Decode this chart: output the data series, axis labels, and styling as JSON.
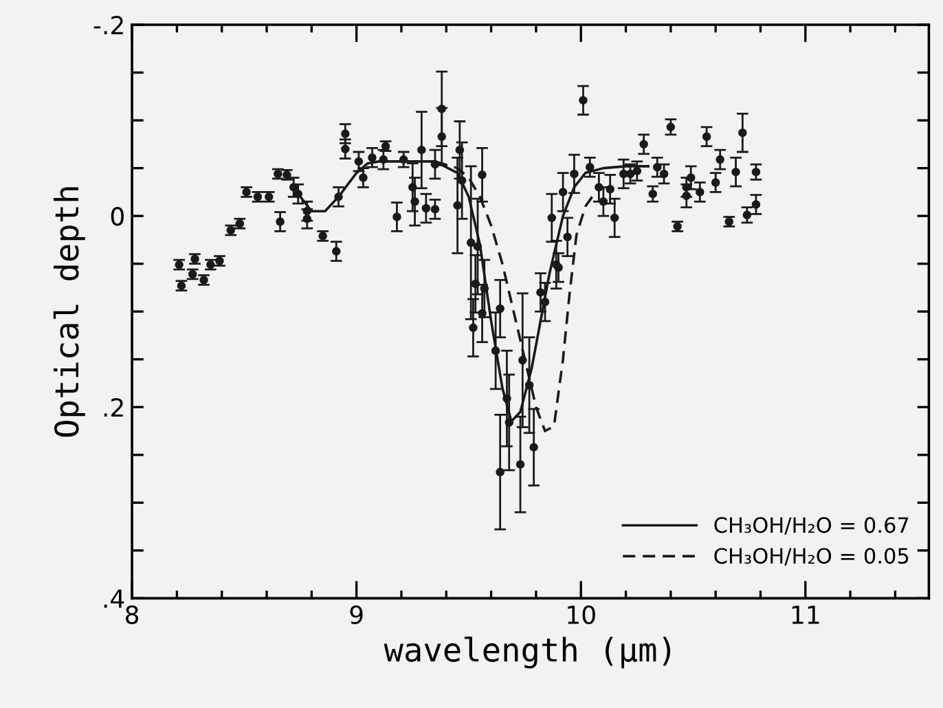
{
  "chart_data": {
    "type": "scatter",
    "xlabel": "wavelength (µm)",
    "ylabel": "Optical depth",
    "xlim": [
      8,
      11.55
    ],
    "xticks": [
      8,
      {
        "value": 8.2,
        "label": null
      },
      {
        "value": 8.4,
        "label": null
      },
      {
        "value": 8.6,
        "label": null
      },
      {
        "value": 8.8,
        "label": null
      },
      9,
      {
        "value": 9.2,
        "label": null
      },
      {
        "value": 9.4,
        "label": null
      },
      {
        "value": 9.6,
        "label": null
      },
      {
        "value": 9.8,
        "label": null
      },
      10,
      {
        "value": 10.2,
        "label": null
      },
      {
        "value": 10.4,
        "label": null
      },
      {
        "value": 10.6,
        "label": null
      },
      {
        "value": 10.8,
        "label": null
      },
      11,
      {
        "value": 11.2,
        "label": null
      },
      {
        "value": 11.4,
        "label": null
      }
    ],
    "ylim": [
      0.4,
      -0.2
    ],
    "yticks": [
      {
        "value": -0.2,
        "label": "-.2"
      },
      {
        "value": -0.15,
        "label": null
      },
      {
        "value": -0.1,
        "label": null
      },
      {
        "value": -0.05,
        "label": null
      },
      0,
      {
        "value": 0.05,
        "label": null
      },
      {
        "value": 0.1,
        "label": null
      },
      {
        "value": 0.15,
        "label": null
      },
      {
        "value": 0.2,
        "label": ".2"
      },
      {
        "value": 0.25,
        "label": null
      },
      {
        "value": 0.3,
        "label": null
      },
      {
        "value": 0.35,
        "label": null
      },
      {
        "value": 0.4,
        "label": ".4"
      }
    ],
    "grid": false,
    "legend": "bottom right",
    "series": [
      {
        "color": "#1a1a1a",
        "marker": "circle",
        "x": [
          8.21,
          8.22,
          8.27,
          8.28,
          8.32,
          8.35,
          8.39,
          8.44,
          8.48,
          8.51,
          8.56,
          8.61,
          8.65,
          8.66,
          8.69,
          8.72,
          8.74,
          8.78,
          8.78,
          8.85,
          8.91,
          8.92,
          8.95,
          8.95,
          9.01,
          9.03,
          9.07,
          9.12,
          9.13,
          9.18,
          9.21,
          9.25,
          9.26,
          9.29,
          9.31,
          9.35,
          9.35,
          9.38,
          9.38,
          9.45,
          9.46,
          9.47,
          9.51,
          9.52,
          9.53,
          9.54,
          9.56,
          9.56,
          9.57,
          9.62,
          9.64,
          9.64,
          9.67,
          9.68,
          9.73,
          9.74,
          9.77,
          9.79,
          9.82,
          9.84,
          9.87,
          9.89,
          9.9,
          9.92,
          9.94,
          9.97,
          10.01,
          10.04,
          10.08,
          10.1,
          10.13,
          10.15,
          10.19,
          10.22,
          10.25,
          10.28,
          10.32,
          10.34,
          10.37,
          10.4,
          10.43,
          10.47,
          10.47,
          10.49,
          10.53,
          10.56,
          10.6,
          10.62,
          10.66,
          10.69,
          10.72,
          10.74,
          10.78,
          10.78
        ],
        "values": [
          0.051,
          0.073,
          0.061,
          0.045,
          0.067,
          0.051,
          0.047,
          0.015,
          0.008,
          -0.025,
          -0.02,
          -0.02,
          -0.044,
          0.006,
          -0.043,
          -0.03,
          -0.023,
          -0.005,
          0.003,
          0.021,
          0.037,
          -0.02,
          -0.086,
          -0.07,
          -0.057,
          -0.04,
          -0.061,
          -0.059,
          -0.073,
          0.001,
          -0.059,
          -0.03,
          -0.015,
          -0.069,
          -0.008,
          -0.054,
          -0.007,
          -0.112,
          -0.083,
          -0.011,
          -0.069,
          -0.037,
          0.028,
          0.117,
          0.071,
          0.032,
          -0.043,
          0.102,
          0.076,
          0.141,
          0.097,
          0.268,
          0.191,
          0.216,
          0.26,
          0.151,
          0.177,
          0.242,
          0.08,
          0.09,
          0.002,
          0.051,
          0.054,
          -0.025,
          0.022,
          -0.044,
          -0.121,
          -0.051,
          -0.03,
          -0.015,
          -0.028,
          0.002,
          -0.044,
          -0.044,
          -0.047,
          -0.075,
          -0.023,
          -0.051,
          -0.044,
          -0.093,
          0.011,
          -0.03,
          -0.021,
          -0.04,
          -0.025,
          -0.083,
          -0.035,
          -0.059,
          0.006,
          -0.046,
          -0.087,
          -0.001,
          -0.046,
          -0.012
        ],
        "errors": [
          0.005,
          0.005,
          0.005,
          0.005,
          0.005,
          0.005,
          0.005,
          0.005,
          0.005,
          0.005,
          0.005,
          0.005,
          0.005,
          0.01,
          0.005,
          0.01,
          0.01,
          0.01,
          0.01,
          0.005,
          0.01,
          0.01,
          0.01,
          0.01,
          0.01,
          0.01,
          0.01,
          0.01,
          0.005,
          0.015,
          0.008,
          0.025,
          0.025,
          0.04,
          0.015,
          0.015,
          0.01,
          0.039,
          0.03,
          0.05,
          0.03,
          0.04,
          0.08,
          0.03,
          0.03,
          0.05,
          0.028,
          0.03,
          0.03,
          0.04,
          0.03,
          0.06,
          0.05,
          0.05,
          0.05,
          0.07,
          0.05,
          0.04,
          0.02,
          0.02,
          0.025,
          0.025,
          0.015,
          0.02,
          0.02,
          0.02,
          0.015,
          0.01,
          0.015,
          0.015,
          0.015,
          0.02,
          0.015,
          0.01,
          0.01,
          0.01,
          0.008,
          0.01,
          0.01,
          0.008,
          0.005,
          0.01,
          0.012,
          0.012,
          0.01,
          0.01,
          0.01,
          0.01,
          0.005,
          0.015,
          0.02,
          0.008,
          0.008,
          0.01
        ]
      },
      {
        "type": "line",
        "name": "CH₃OH/H₂O = 0.67",
        "color": "#1a1a1a",
        "line_style": "solid",
        "x": [
          8.74,
          8.8,
          8.86,
          8.92,
          9.0,
          9.05,
          9.1,
          9.2,
          9.35,
          9.45,
          9.5,
          9.55,
          9.6,
          9.65,
          9.69,
          9.73,
          9.78,
          9.82,
          9.86,
          9.92,
          9.97,
          10.02,
          10.1,
          10.2,
          10.3
        ],
        "values": [
          -0.023,
          -0.005,
          -0.005,
          -0.02,
          -0.045,
          -0.055,
          -0.057,
          -0.057,
          -0.057,
          -0.045,
          -0.02,
          0.03,
          0.11,
          0.18,
          0.215,
          0.205,
          0.16,
          0.11,
          0.06,
          0.0,
          -0.03,
          -0.045,
          -0.05,
          -0.052,
          -0.052
        ]
      },
      {
        "type": "line",
        "name": "CH₃OH/H₂O = 0.05",
        "color": "#1a1a1a",
        "line_style": "dashed",
        "x": [
          9.35,
          9.45,
          9.5,
          9.55,
          9.6,
          9.65,
          9.7,
          9.75,
          9.8,
          9.84,
          9.88,
          9.92,
          9.95,
          9.98,
          10.02,
          10.05
        ],
        "values": [
          -0.057,
          -0.05,
          -0.04,
          -0.02,
          0.01,
          0.05,
          0.1,
          0.15,
          0.2,
          0.225,
          0.22,
          0.15,
          0.08,
          0.02,
          -0.01,
          -0.02
        ]
      }
    ]
  }
}
